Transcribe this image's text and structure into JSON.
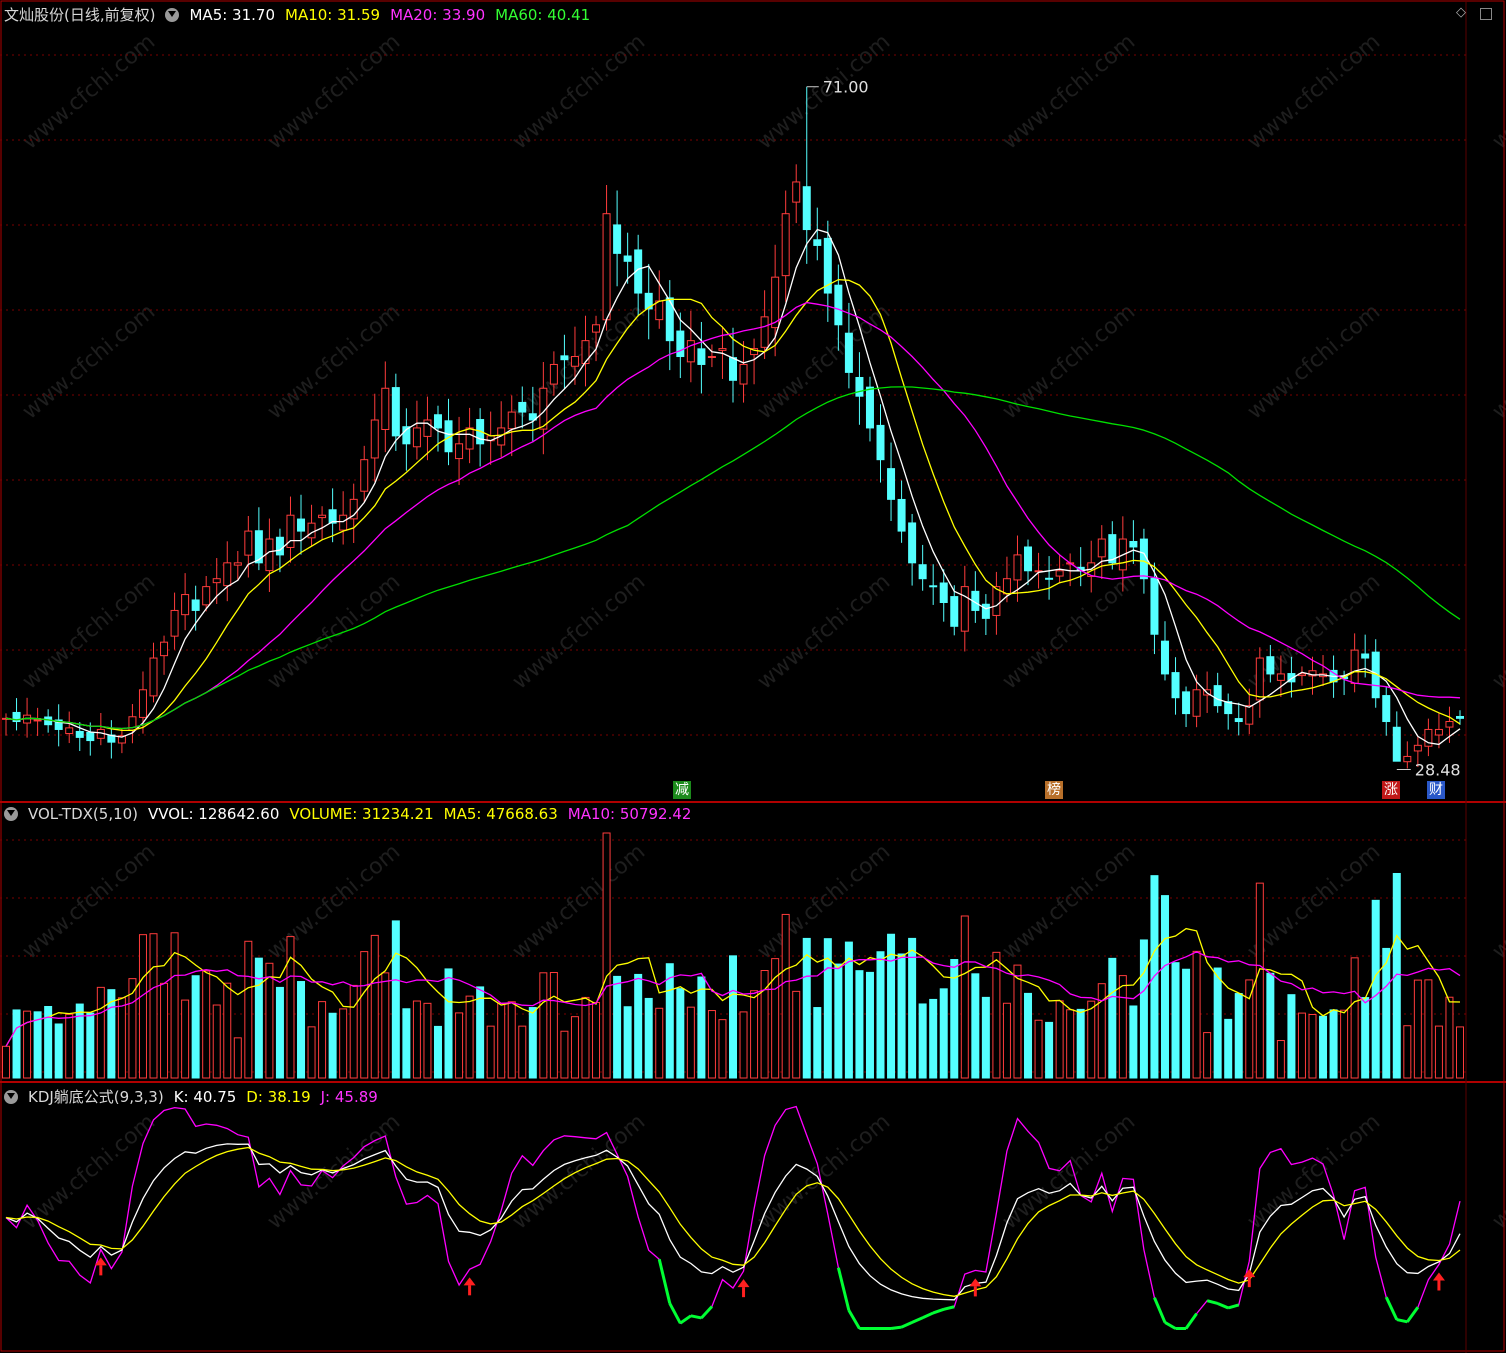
{
  "header_main": {
    "title": "文灿股份(日线,前复权)",
    "ma5": "MA5: 31.70",
    "ma10": "MA10: 31.59",
    "ma20": "MA20: 33.90",
    "ma60": "MA60: 40.41"
  },
  "header_vol": {
    "name": "VOL-TDX(5,10)",
    "vvol": "VVOL: 128642.60",
    "volume": "VOLUME: 31234.21",
    "ma5": "MA5: 47668.63",
    "ma10": "MA10: 50792.42"
  },
  "header_kdj": {
    "name": "KDJ躺底公式(9,3,3)",
    "k": "K: 40.75",
    "d": "D: 38.19",
    "j": "J: 45.89"
  },
  "annotations": {
    "high_label": "71.00",
    "low_label": "28.48",
    "tag_jian": "减",
    "tag_bang": "榜",
    "tag_zhang": "涨",
    "tag_cai": "财"
  },
  "watermark": "www.cfchi.com",
  "colors": {
    "up": "#ff3c3c",
    "down": "#54ffff",
    "ma5": "#ffffff",
    "ma10": "#ffff00",
    "ma20": "#ff00ff",
    "ma60": "#00e000",
    "divider": "#b00000",
    "grid": "#7a0000"
  },
  "chart_data": {
    "type": "candlestick",
    "price_range": [
      27,
      73
    ],
    "close": [
      31.2,
      31.0,
      31.4,
      31.1,
      30.8,
      30.5,
      30.6,
      30.0,
      29.8,
      30.5,
      29.7,
      30.1,
      31.3,
      33.0,
      35.0,
      36.0,
      38.0,
      39.0,
      38.0,
      39.5,
      40.0,
      41.0,
      41.0,
      43.0,
      41.0,
      42.5,
      41.5,
      44.0,
      43.0,
      43.5,
      44.0,
      43.5,
      44.0,
      45.0,
      47.5,
      50.0,
      52.0,
      49.0,
      48.5,
      49.5,
      50.0,
      49.5,
      48.0,
      48.5,
      49.5,
      48.5,
      49.0,
      49.5,
      50.5,
      50.5,
      50.0,
      52.0,
      53.5,
      53.8,
      54.0,
      55.0,
      56.0,
      63.0,
      60.5,
      60.0,
      58.0,
      57.0,
      57.5,
      55.0,
      54.0,
      55.0,
      53.5,
      54.0,
      54.5,
      52.5,
      53.5,
      54.5,
      56.5,
      59.0,
      63.0,
      65.0,
      62.0,
      61.0,
      58.0,
      56.0,
      53.0,
      51.5,
      49.5,
      47.5,
      45.0,
      43.0,
      41.0,
      40.0,
      39.5,
      38.5,
      37.0,
      39.5,
      38.0,
      37.5,
      39.5,
      40.0,
      41.5,
      40.5,
      40.5,
      40.0,
      40.5,
      41.0,
      40.5,
      41.0,
      42.5,
      41.0,
      42.5,
      42.0,
      40.0,
      36.5,
      34.0,
      32.5,
      31.5,
      33.0,
      33.0,
      32.0,
      31.5,
      31.0,
      32.0,
      35.0,
      34.0,
      34.0,
      33.5,
      34.0,
      34.2,
      34.0,
      33.5,
      33.7,
      35.5,
      35.0,
      32.5,
      31.0,
      28.5,
      28.8,
      29.5,
      30.5,
      30.5,
      31.0,
      31.2
    ],
    "ma_last": {
      "ma5": 31.7,
      "ma10": 31.59,
      "ma20": 33.9,
      "ma60": 40.41
    },
    "high": 71.0,
    "low": 28.48,
    "volume_series": [
      "VVOL",
      "VOLUME",
      "MA5",
      "MA10"
    ],
    "kdj_params": [
      9,
      3,
      3
    ],
    "kdj_last": {
      "k": 40.75,
      "d": 38.19,
      "j": 45.89
    }
  }
}
